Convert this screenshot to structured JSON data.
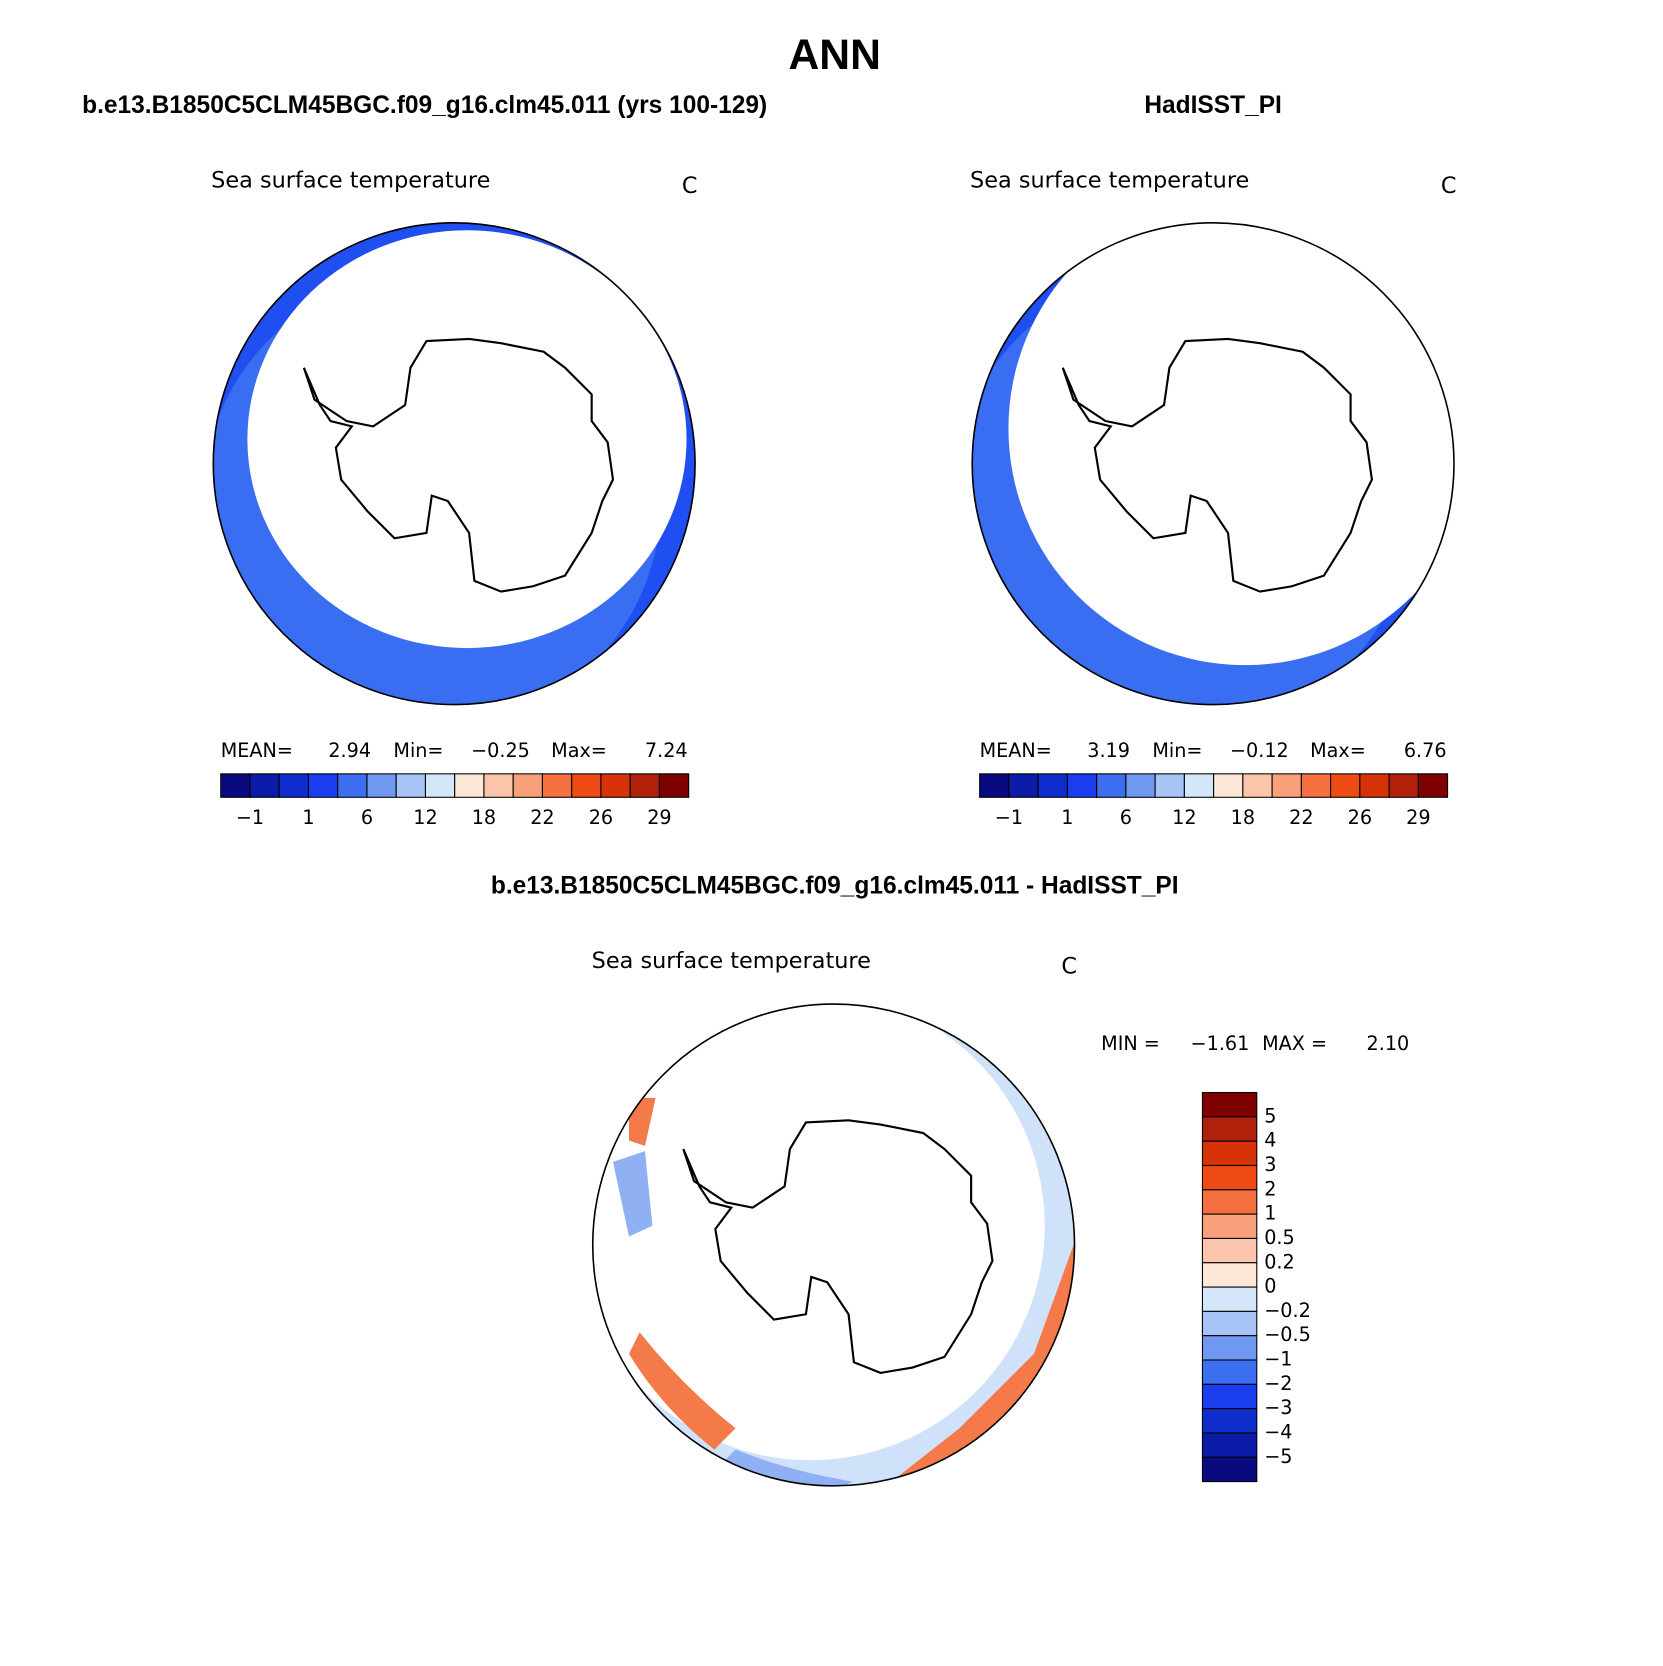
{
  "title": "ANN",
  "panels": [
    {
      "heading": "b.e13.B1850C5CLM45BGC.f09_g16.clm45.011 (yrs 100-129)",
      "field": "Sea surface temperature",
      "units": "C",
      "stats": [
        "MEAN=",
        "2.94",
        "Min=",
        "−0.25",
        "Max=",
        "7.24"
      ],
      "colorbar": {
        "labels": [
          "−1",
          "1",
          "6",
          "12",
          "18",
          "22",
          "26",
          "29"
        ]
      }
    },
    {
      "heading": "HadISST_PI",
      "field": "Sea surface temperature",
      "units": "C",
      "stats": [
        "MEAN=",
        "3.19",
        "Min=",
        "−0.12",
        "Max=",
        "6.76"
      ],
      "colorbar": {
        "labels": [
          "−1",
          "1",
          "6",
          "12",
          "18",
          "22",
          "26",
          "29"
        ]
      }
    }
  ],
  "difference": {
    "heading": "b.e13.B1850C5CLM45BGC.f09_g16.clm45.011 - HadISST_PI",
    "field": "Sea surface temperature",
    "units": "C",
    "stats": [
      "MIN =",
      "−1.61",
      "MAX =",
      "2.10"
    ],
    "colorbar": {
      "labels": [
        "5",
        "4",
        "3",
        "2",
        "1",
        "0.5",
        "0.2",
        "0",
        "−0.2",
        "−0.5",
        "−1",
        "−2",
        "−3",
        "−4",
        "−5"
      ]
    }
  },
  "colorbar_colors": [
    "#0a0a80",
    "#0a1ca8",
    "#0f2ccc",
    "#1a3eee",
    "#3c6ef0",
    "#6f99f0",
    "#a6c4f5",
    "#d4e6fa",
    "#fde8d8",
    "#fbc5ab",
    "#f8a07a",
    "#f57040",
    "#ee4a14",
    "#d73208",
    "#b0200a",
    "#7f0000"
  ]
}
